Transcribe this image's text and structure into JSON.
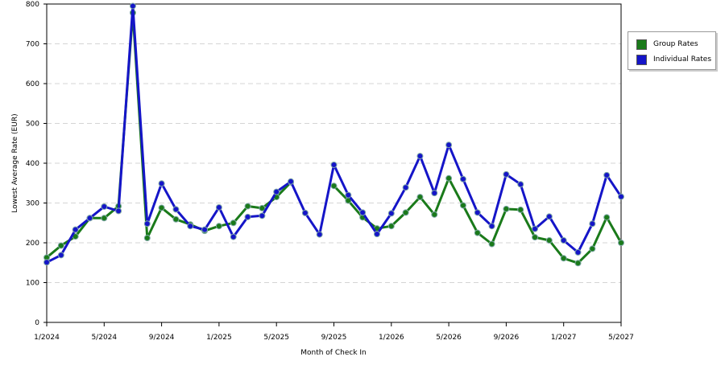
{
  "chart_data": {
    "type": "line",
    "xlabel": "Month of Check In",
    "ylabel": "Lowest Average Rate (EUR)",
    "ylim": [
      0,
      800
    ],
    "yticks": [
      0,
      100,
      200,
      300,
      400,
      500,
      600,
      700,
      800
    ],
    "grid": true,
    "legend_position": "right",
    "x_start": "1/2024",
    "x_tick_labels": [
      "1/2024",
      "5/2024",
      "9/2024",
      "1/2025",
      "5/2025",
      "9/2025",
      "1/2026",
      "5/2026",
      "9/2026",
      "1/2027",
      "5/2027"
    ],
    "series": [
      {
        "name": "Group Rates",
        "color": "#1a7a1a",
        "values": [
          163,
          193,
          216,
          262,
          262,
          292,
          778,
          212,
          288,
          259,
          246,
          230,
          242,
          250,
          292,
          287,
          315,
          352,
          null,
          null,
          343,
          306,
          264,
          236,
          242,
          276,
          315,
          271,
          362,
          294,
          225,
          197,
          285,
          283,
          214,
          206,
          161,
          149,
          185,
          264,
          200
        ]
      },
      {
        "name": "Individual Rates",
        "color": "#1515c8",
        "values": [
          151,
          169,
          233,
          262,
          291,
          280,
          795,
          248,
          349,
          284,
          242,
          233,
          289,
          215,
          265,
          268,
          328,
          354,
          275,
          221,
          396,
          320,
          276,
          222,
          274,
          339,
          418,
          325,
          446,
          360,
          276,
          242,
          372,
          347,
          235,
          266,
          206,
          176,
          248,
          370,
          316
        ]
      }
    ]
  }
}
